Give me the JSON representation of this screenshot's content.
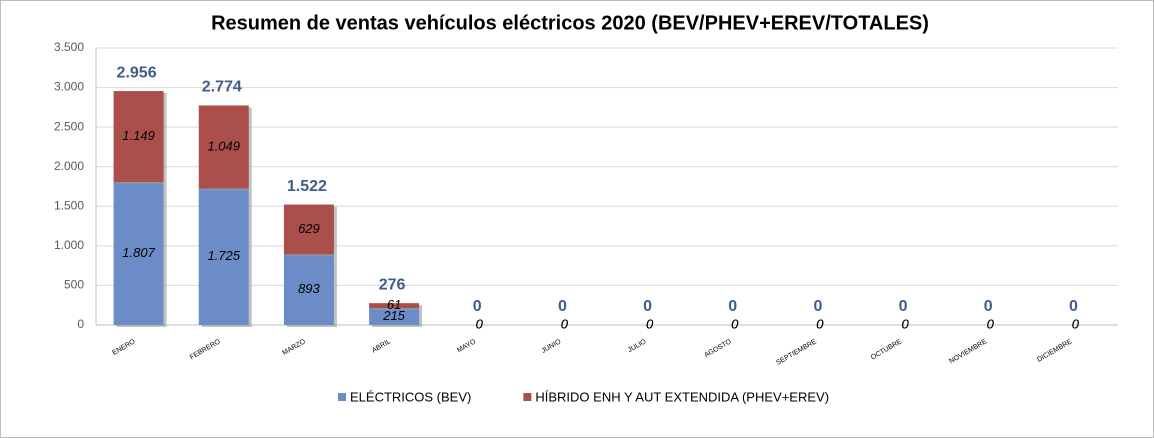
{
  "chart_data": {
    "type": "stacked_bar",
    "title": "Resumen de ventas vehículos eléctricos 2020 (BEV/PHEV+EREV/TOTALES)",
    "categories": [
      "ENERO",
      "FEBRERO",
      "MARZO",
      "ABRIL",
      "MAYO",
      "JUNIO",
      "JULIO",
      "AGOSTO",
      "SEPTIEMBRE",
      "OCTUBRE",
      "NOVIEMBRE",
      "DICIEMBRE"
    ],
    "series": [
      {
        "name": "ELÉCTRICOS (BEV)",
        "color": "#6b8cc7",
        "values": [
          1807,
          1725,
          893,
          215,
          0,
          0,
          0,
          0,
          0,
          0,
          0,
          0
        ],
        "value_labels": [
          "1.807",
          "1.725",
          "893",
          "215",
          "0",
          "0",
          "0",
          "0",
          "0",
          "0",
          "0",
          "0"
        ]
      },
      {
        "name": "HÍBRIDO ENH Y AUT EXTENDIDA (PHEV+EREV)",
        "color": "#ab4f4d",
        "values": [
          1149,
          1049,
          629,
          61,
          0,
          0,
          0,
          0,
          0,
          0,
          0,
          0
        ],
        "value_labels": [
          "1.149",
          "1.049",
          "629",
          "61",
          "0",
          "0",
          "0",
          "0",
          "0",
          "0",
          "0",
          "0"
        ]
      }
    ],
    "totals": {
      "values": [
        2956,
        2774,
        1522,
        276,
        0,
        0,
        0,
        0,
        0,
        0,
        0,
        0
      ],
      "value_labels": [
        "2.956",
        "2.774",
        "1.522",
        "276",
        "0",
        "0",
        "0",
        "0",
        "0",
        "0",
        "0",
        "0"
      ]
    },
    "ylim": [
      0,
      3500
    ],
    "yticks": [
      0,
      {
        "value": 500,
        "label": "500"
      },
      {
        "value": 1000,
        "label": "1.000"
      },
      {
        "value": 1500,
        "label": "1.500"
      },
      {
        "value": 2000,
        "label": "2.000"
      },
      {
        "value": 2500,
        "label": "2.500"
      },
      {
        "value": 3000,
        "label": "3.000"
      },
      {
        "value": 3500,
        "label": "3.500"
      }
    ],
    "grid": true,
    "legend": "bottom"
  }
}
